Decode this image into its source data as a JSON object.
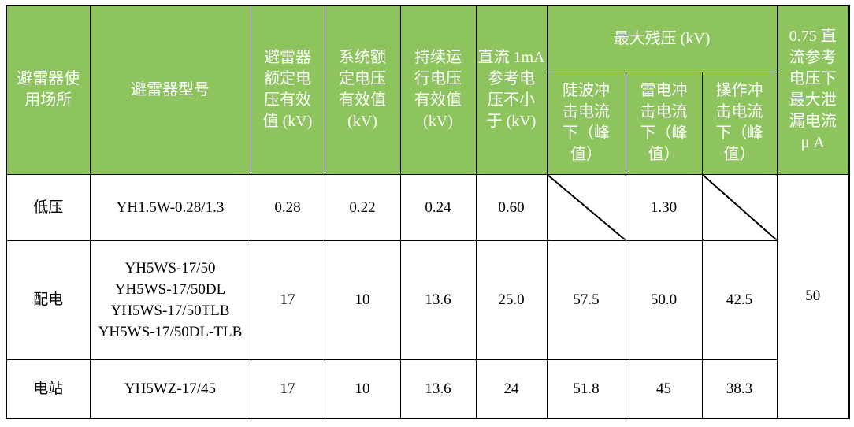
{
  "colors": {
    "header_bg": "#8dc45e",
    "header_text": "#ffffff",
    "body_text": "#000000",
    "border": "#000000",
    "background": "#ffffff"
  },
  "table": {
    "header": {
      "location": "避雷器使\n用场所",
      "model": "避雷器型号",
      "rated_voltage": "避雷器\n额定电\n压有效\n值 (kV)",
      "system_voltage": "系统额\n定电压\n有效值\n(kV)",
      "continuous_voltage": "持续运\n行电压\n有效值\n(kV)",
      "dc_1ma_voltage": "直流 1mA\n参考电\n压不小\n于 (kV)",
      "max_residual": "最大残压 (kV)",
      "steep_wave": "陡波冲\n击电流\n下（峰\n值）",
      "lightning": "雷电冲\n击电流\n下（峰\n值）",
      "switching": "操作冲\n击电流\n下（峰\n值）",
      "leakage": "0.75 直\n流参考\n电压下\n最大泄\n漏电流\nμ A"
    },
    "rows": [
      {
        "place": "低压",
        "model": "YH1.5W-0.28/1.3",
        "rated": "0.28",
        "system": "0.22",
        "continuous": "0.24",
        "dc_1ma": "0.60",
        "steep": "",
        "lightning": "1.30",
        "switching": "",
        "leakage": "50"
      },
      {
        "place": "配电",
        "model": "YH5WS-17/50\nYH5WS-17/50DL\nYH5WS-17/50TLB\nYH5WS-17/50DL-TLB",
        "rated": "17",
        "system": "10",
        "continuous": "13.6",
        "dc_1ma": "25.0",
        "steep": "57.5",
        "lightning": "50.0",
        "switching": "42.5"
      },
      {
        "place": "电站",
        "model": "YH5WZ-17/45",
        "rated": "17",
        "system": "10",
        "continuous": "13.6",
        "dc_1ma": "24",
        "steep": "51.8",
        "lightning": "45",
        "switching": "38.3"
      }
    ]
  }
}
